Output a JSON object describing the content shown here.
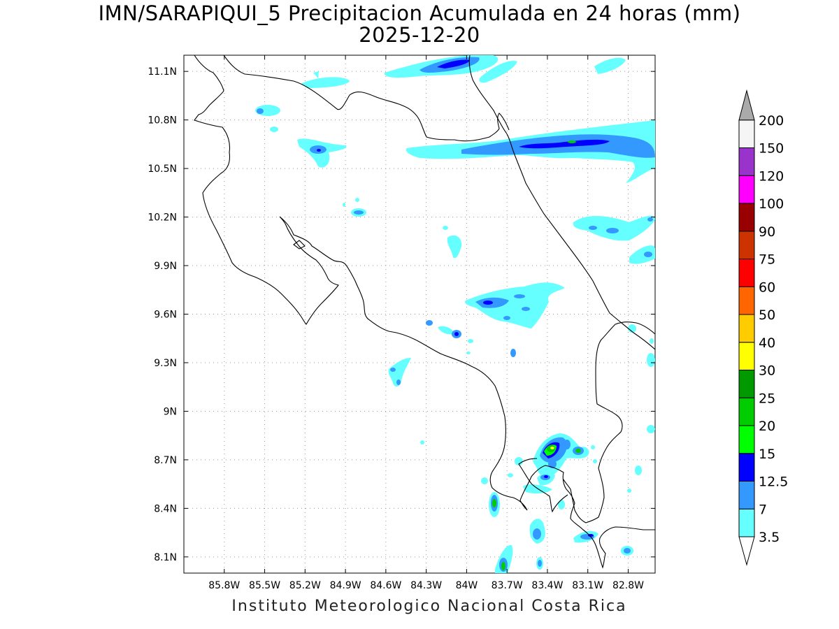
{
  "title_line1": "IMN/SARAPIQUI_5 Precipitacion Acumulada en 24 horas (mm)",
  "title_line2": "2025-12-20",
  "footer": "Instituto Meteorologico Nacional Costa Rica",
  "map": {
    "lon_range": [
      -86.1,
      -82.6
    ],
    "lat_range": [
      8.0,
      11.2
    ],
    "lon_ticks": [
      "85.8W",
      "85.5W",
      "85.2W",
      "84.9W",
      "84.6W",
      "84.3W",
      "84W",
      "83.7W",
      "83.4W",
      "83.1W",
      "82.8W"
    ],
    "lat_ticks": [
      "11.1N",
      "10.8N",
      "10.5N",
      "10.2N",
      "9.9N",
      "9.6N",
      "9.3N",
      "9N",
      "8.7N",
      "8.4N",
      "8.1N"
    ],
    "grid": "dotted"
  },
  "colorbar": {
    "labels": [
      "3.5",
      "7",
      "12.5",
      "15",
      "20",
      "25",
      "30",
      "40",
      "50",
      "60",
      "75",
      "90",
      "100",
      "120",
      "150",
      "200"
    ],
    "colors": [
      "#66ffff",
      "#3399ff",
      "#0000ff",
      "#00ff00",
      "#00cc00",
      "#009900",
      "#ffff00",
      "#ffcc00",
      "#ff6600",
      "#ff0000",
      "#cc3300",
      "#990000",
      "#ff00ff",
      "#9933cc",
      "#f5f5f5",
      "#aaaaaa"
    ]
  }
}
